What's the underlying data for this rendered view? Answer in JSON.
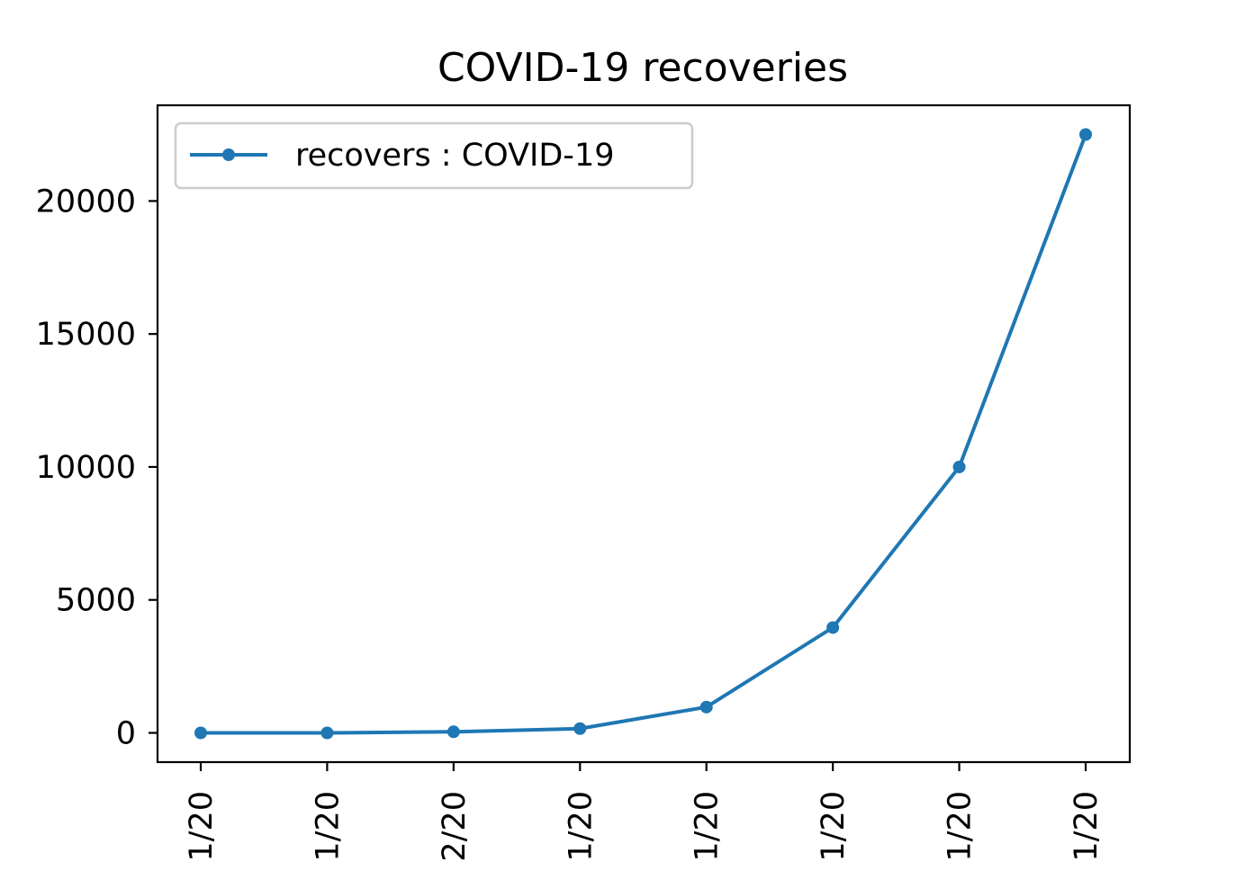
{
  "chart_data": {
    "type": "line",
    "title": "COVID-19 recoveries",
    "xlabel": "",
    "ylabel": "",
    "x_tick_labels": [
      "1/20",
      "1/20",
      "2/20",
      "1/20",
      "1/20",
      "1/20",
      "1/20",
      "1/20"
    ],
    "series": [
      {
        "name": "recovers : COVID-19",
        "values": [
          0,
          0,
          40,
          160,
          970,
          3960,
          10000,
          22500
        ],
        "color": "#1f77b4"
      }
    ],
    "ylim": [
      -1100,
      23600
    ],
    "y_ticks": [
      0,
      5000,
      10000,
      15000,
      20000
    ],
    "grid": false,
    "legend_position": "upper-left",
    "marker": "dot"
  }
}
